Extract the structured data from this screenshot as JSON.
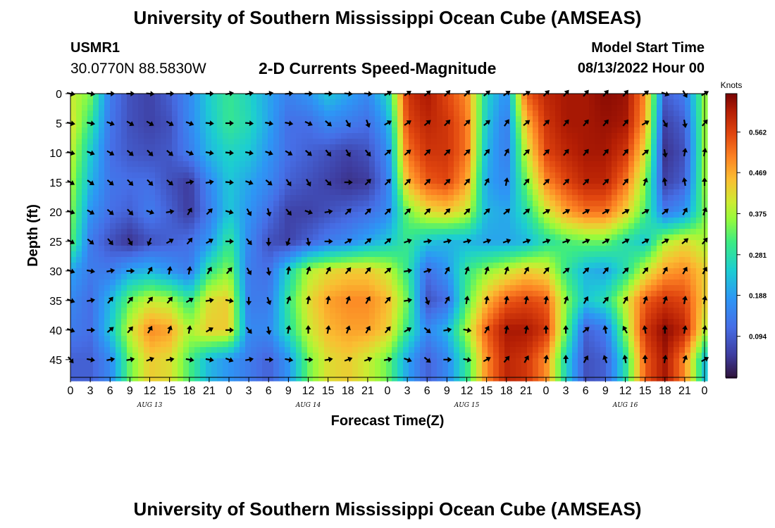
{
  "header": {
    "title": "University of Southern Mississippi Ocean Cube (AMSEAS)",
    "station_id": "USMR1",
    "station_location": "30.0770N  88.5830W",
    "subtitle": "2-D Currents Speed-Magnitude",
    "model_start_label": "Model Start Time",
    "model_start_value": "08/13/2022 Hour 00"
  },
  "footer": {
    "title": "University of Southern Mississippi Ocean Cube (AMSEAS)"
  },
  "chart_data": {
    "type": "heatmap",
    "title": "2-D Currents Speed-Magnitude",
    "xlabel": "Forecast Time(Z)",
    "ylabel": "Depth (ft)",
    "x_ticks": [
      "0",
      "3",
      "6",
      "9",
      "12",
      "15",
      "18",
      "21",
      "0",
      "3",
      "6",
      "9",
      "12",
      "15",
      "18",
      "21",
      "0",
      "3",
      "6",
      "9",
      "12",
      "15",
      "18",
      "21",
      "0",
      "3",
      "6",
      "9",
      "12",
      "15",
      "18",
      "21",
      "0"
    ],
    "x_range_hours": [
      0,
      96
    ],
    "date_labels": [
      {
        "label": "AUG 13",
        "hour": 12
      },
      {
        "label": "AUG 14",
        "hour": 36
      },
      {
        "label": "AUG 15",
        "hour": 60
      },
      {
        "label": "AUG 16",
        "hour": 84
      }
    ],
    "y_ticks": [
      "0",
      "5",
      "10",
      "15",
      "20",
      "25",
      "30",
      "35",
      "40",
      "45"
    ],
    "y_range_ft": [
      0,
      48
    ],
    "colorbar": {
      "unit": "Knots",
      "ticks": [
        "0.562",
        "0.469",
        "0.375",
        "0.281",
        "0.188",
        "0.094"
      ],
      "range": [
        0,
        0.65
      ]
    },
    "depths_ft": [
      0,
      5,
      10,
      15,
      20,
      25,
      30,
      35,
      40,
      45
    ],
    "hours": [
      0,
      3,
      6,
      9,
      12,
      15,
      18,
      21,
      24,
      27,
      30,
      33,
      36,
      39,
      42,
      45,
      48,
      51,
      54,
      57,
      60,
      63,
      66,
      69,
      72,
      75,
      78,
      81,
      84,
      87,
      90,
      93,
      96
    ],
    "speed_knots": [
      [
        0.4,
        0.35,
        0.14,
        0.08,
        0.06,
        0.1,
        0.16,
        0.25,
        0.3,
        0.26,
        0.2,
        0.15,
        0.18,
        0.24,
        0.2,
        0.16,
        0.26,
        0.58,
        0.62,
        0.56,
        0.5,
        0.26,
        0.17,
        0.54,
        0.6,
        0.62,
        0.62,
        0.64,
        0.63,
        0.5,
        0.1,
        0.14,
        0.36
      ],
      [
        0.42,
        0.3,
        0.13,
        0.08,
        0.06,
        0.08,
        0.16,
        0.24,
        0.3,
        0.27,
        0.2,
        0.12,
        0.12,
        0.16,
        0.14,
        0.12,
        0.2,
        0.56,
        0.6,
        0.58,
        0.52,
        0.24,
        0.14,
        0.46,
        0.58,
        0.62,
        0.62,
        0.63,
        0.62,
        0.48,
        0.06,
        0.1,
        0.36
      ],
      [
        0.4,
        0.25,
        0.12,
        0.09,
        0.08,
        0.09,
        0.14,
        0.22,
        0.26,
        0.24,
        0.18,
        0.12,
        0.1,
        0.08,
        0.06,
        0.08,
        0.16,
        0.52,
        0.58,
        0.58,
        0.52,
        0.22,
        0.14,
        0.4,
        0.56,
        0.6,
        0.62,
        0.62,
        0.58,
        0.42,
        0.04,
        0.08,
        0.36
      ],
      [
        0.38,
        0.22,
        0.13,
        0.12,
        0.12,
        0.08,
        0.05,
        0.16,
        0.24,
        0.2,
        0.16,
        0.1,
        0.08,
        0.06,
        0.04,
        0.05,
        0.14,
        0.46,
        0.54,
        0.56,
        0.48,
        0.2,
        0.16,
        0.34,
        0.5,
        0.56,
        0.6,
        0.6,
        0.52,
        0.36,
        0.06,
        0.1,
        0.36
      ],
      [
        0.36,
        0.18,
        0.12,
        0.1,
        0.14,
        0.1,
        0.05,
        0.14,
        0.24,
        0.18,
        0.12,
        0.06,
        0.06,
        0.08,
        0.1,
        0.12,
        0.16,
        0.34,
        0.42,
        0.44,
        0.4,
        0.22,
        0.2,
        0.28,
        0.4,
        0.48,
        0.52,
        0.52,
        0.44,
        0.32,
        0.14,
        0.18,
        0.34
      ],
      [
        0.34,
        0.14,
        0.08,
        0.04,
        0.08,
        0.1,
        0.12,
        0.18,
        0.3,
        0.16,
        0.08,
        0.06,
        0.1,
        0.14,
        0.16,
        0.2,
        0.24,
        0.3,
        0.24,
        0.22,
        0.22,
        0.2,
        0.2,
        0.22,
        0.28,
        0.32,
        0.34,
        0.34,
        0.28,
        0.24,
        0.38,
        0.42,
        0.38
      ],
      [
        0.2,
        0.14,
        0.14,
        0.2,
        0.22,
        0.18,
        0.14,
        0.3,
        0.36,
        0.14,
        0.12,
        0.26,
        0.38,
        0.42,
        0.44,
        0.44,
        0.4,
        0.3,
        0.12,
        0.18,
        0.3,
        0.36,
        0.4,
        0.44,
        0.42,
        0.3,
        0.22,
        0.2,
        0.28,
        0.4,
        0.48,
        0.5,
        0.44
      ],
      [
        0.16,
        0.12,
        0.22,
        0.34,
        0.4,
        0.38,
        0.3,
        0.42,
        0.44,
        0.14,
        0.14,
        0.3,
        0.42,
        0.48,
        0.5,
        0.5,
        0.46,
        0.34,
        0.08,
        0.12,
        0.32,
        0.46,
        0.54,
        0.56,
        0.54,
        0.36,
        0.24,
        0.28,
        0.4,
        0.54,
        0.58,
        0.56,
        0.44
      ],
      [
        0.14,
        0.12,
        0.24,
        0.4,
        0.5,
        0.48,
        0.38,
        0.44,
        0.44,
        0.16,
        0.16,
        0.28,
        0.4,
        0.46,
        0.48,
        0.48,
        0.44,
        0.3,
        0.16,
        0.22,
        0.38,
        0.54,
        0.62,
        0.62,
        0.58,
        0.34,
        0.1,
        0.14,
        0.36,
        0.58,
        0.64,
        0.6,
        0.4
      ],
      [
        0.1,
        0.1,
        0.16,
        0.34,
        0.44,
        0.42,
        0.32,
        0.22,
        0.18,
        0.14,
        0.1,
        0.18,
        0.34,
        0.42,
        0.44,
        0.4,
        0.34,
        0.2,
        0.1,
        0.16,
        0.3,
        0.5,
        0.6,
        0.58,
        0.5,
        0.26,
        0.08,
        0.1,
        0.28,
        0.54,
        0.62,
        0.5,
        0.24
      ]
    ],
    "direction_deg": [
      [
        100,
        100,
        90,
        90,
        95,
        90,
        90,
        90,
        80,
        80,
        80,
        85,
        90,
        90,
        95,
        95,
        60,
        55,
        50,
        45,
        45,
        50,
        55,
        60,
        45,
        40,
        40,
        40,
        40,
        50,
        110,
        150,
        60
      ],
      [
        100,
        100,
        110,
        120,
        120,
        120,
        110,
        95,
        90,
        95,
        100,
        100,
        115,
        130,
        150,
        160,
        60,
        55,
        50,
        45,
        45,
        50,
        35,
        50,
        45,
        40,
        40,
        40,
        40,
        60,
        150,
        170,
        40
      ],
      [
        105,
        110,
        120,
        130,
        135,
        130,
        115,
        100,
        95,
        100,
        110,
        120,
        130,
        140,
        150,
        140,
        50,
        50,
        45,
        45,
        45,
        40,
        30,
        45,
        45,
        40,
        40,
        40,
        40,
        50,
        170,
        10,
        10
      ],
      [
        120,
        125,
        130,
        135,
        135,
        130,
        80,
        80,
        95,
        110,
        130,
        145,
        150,
        135,
        90,
        45,
        45,
        45,
        45,
        45,
        40,
        30,
        10,
        40,
        45,
        45,
        45,
        45,
        40,
        20,
        350,
        350,
        0
      ],
      [
        110,
        120,
        130,
        135,
        110,
        80,
        30,
        45,
        105,
        150,
        165,
        140,
        110,
        80,
        45,
        45,
        45,
        45,
        45,
        45,
        45,
        45,
        50,
        50,
        60,
        60,
        60,
        60,
        60,
        60,
        50,
        30,
        20
      ],
      [
        120,
        130,
        140,
        150,
        200,
        60,
        40,
        60,
        90,
        140,
        180,
        200,
        170,
        90,
        60,
        50,
        50,
        70,
        80,
        75,
        75,
        70,
        70,
        70,
        70,
        70,
        65,
        60,
        60,
        60,
        60,
        50,
        40
      ],
      [
        110,
        100,
        80,
        90,
        30,
        10,
        10,
        30,
        40,
        150,
        170,
        10,
        20,
        30,
        40,
        40,
        50,
        80,
        70,
        30,
        20,
        20,
        20,
        30,
        40,
        50,
        45,
        40,
        45,
        40,
        30,
        30,
        30
      ],
      [
        110,
        80,
        40,
        40,
        40,
        40,
        60,
        80,
        100,
        180,
        160,
        20,
        10,
        10,
        20,
        30,
        40,
        80,
        160,
        30,
        10,
        10,
        10,
        10,
        10,
        20,
        30,
        40,
        30,
        20,
        20,
        10,
        10
      ],
      [
        110,
        90,
        50,
        40,
        30,
        20,
        10,
        60,
        90,
        140,
        170,
        10,
        0,
        10,
        20,
        30,
        40,
        60,
        130,
        80,
        100,
        30,
        10,
        10,
        0,
        0,
        50,
        350,
        330,
        350,
        0,
        10,
        10
      ],
      [
        140,
        100,
        80,
        80,
        70,
        80,
        100,
        100,
        110,
        80,
        90,
        100,
        90,
        80,
        70,
        70,
        80,
        110,
        130,
        90,
        100,
        60,
        40,
        30,
        10,
        0,
        30,
        340,
        350,
        0,
        10,
        20,
        60
      ]
    ]
  }
}
